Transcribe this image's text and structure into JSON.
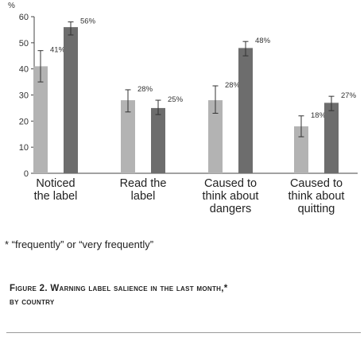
{
  "chart_data": {
    "type": "bar",
    "unit_label": "%",
    "ylim": [
      0,
      60
    ],
    "yticks": [
      "0",
      "10",
      "20",
      "30",
      "40",
      "50",
      "60"
    ],
    "categories": [
      [
        "Noticed",
        "the label"
      ],
      [
        "Read the",
        "label"
      ],
      [
        "Caused to",
        "think about",
        "dangers"
      ],
      [
        "Caused to",
        "think about",
        "quitting"
      ]
    ],
    "series": [
      {
        "values": [
          41,
          28,
          28,
          18
        ],
        "err_low": [
          35,
          23.5,
          23,
          14
        ],
        "err_high": [
          47,
          32,
          33.5,
          22
        ],
        "labels": [
          "41%",
          "28%",
          "28%",
          "18%"
        ],
        "color": "#b3b3b3"
      },
      {
        "values": [
          56,
          25,
          48,
          27
        ],
        "err_low": [
          53,
          22.5,
          45,
          24
        ],
        "err_high": [
          58,
          28,
          50.5,
          29.5
        ],
        "labels": [
          "56%",
          "25%",
          "48%",
          "27%"
        ],
        "color": "#6d6d6d"
      }
    ],
    "grid": false
  },
  "footnote": "* “frequently” or “very frequently”",
  "caption": {
    "line1": "Figure 2. Warning label salience in the last month,*",
    "line2": "by country"
  }
}
